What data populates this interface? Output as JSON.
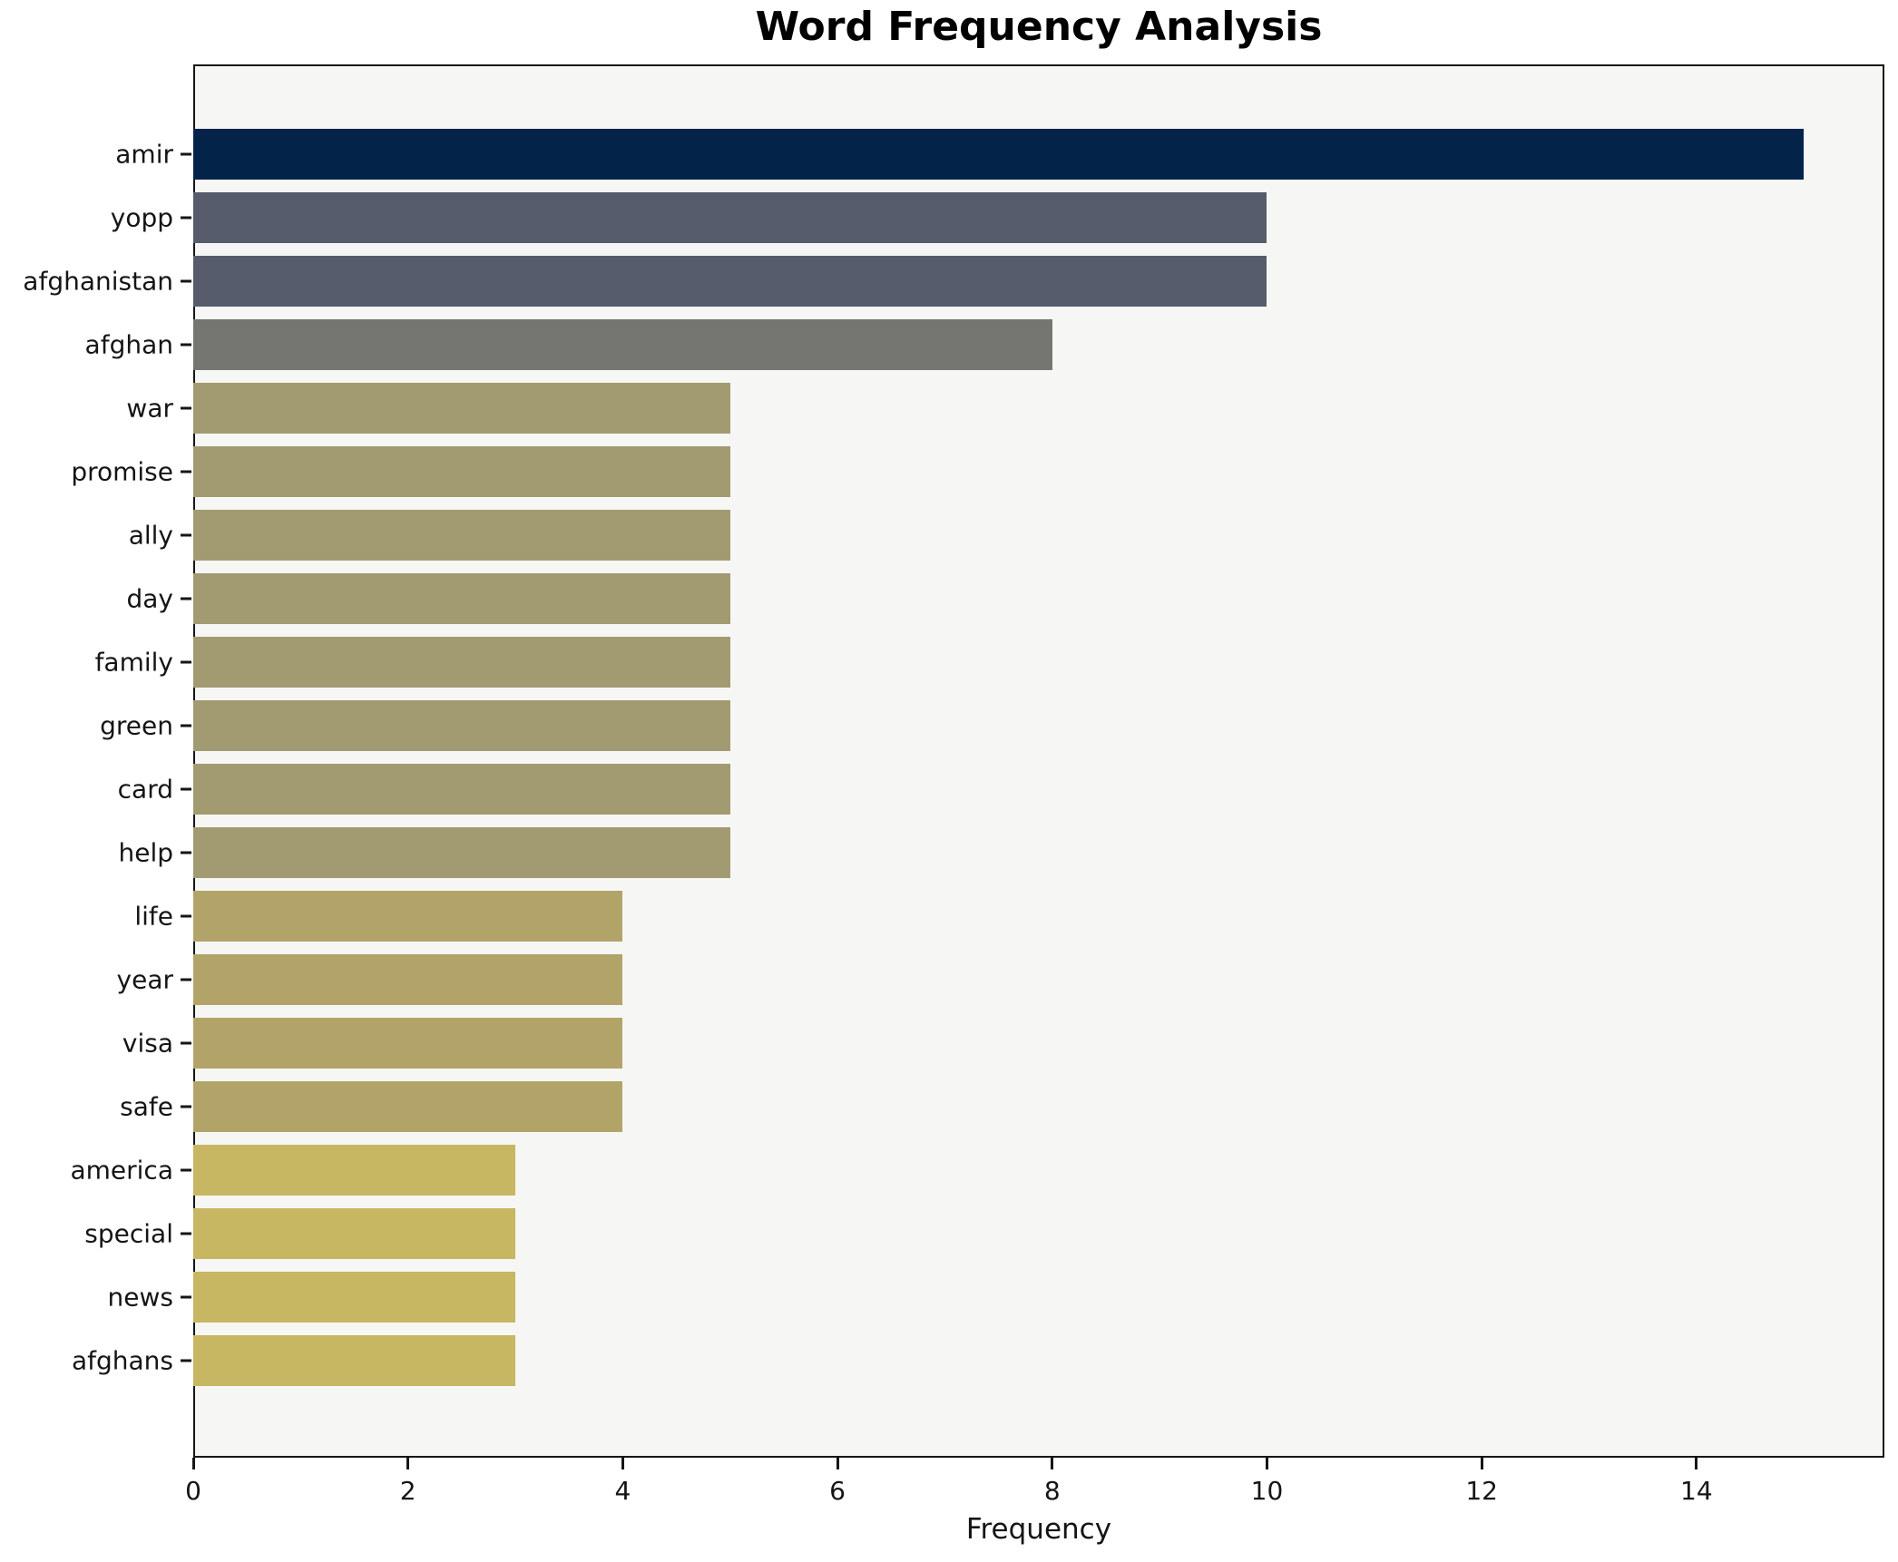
{
  "title": "Word Frequency Analysis",
  "chart_data": {
    "type": "bar",
    "orientation": "horizontal",
    "title": "Word Frequency Analysis",
    "xlabel": "Frequency",
    "ylabel": "",
    "categories": [
      "amir",
      "yopp",
      "afghanistan",
      "afghan",
      "war",
      "promise",
      "ally",
      "day",
      "family",
      "green",
      "card",
      "help",
      "life",
      "year",
      "visa",
      "safe",
      "america",
      "special",
      "news",
      "afghans"
    ],
    "values": [
      15,
      10,
      10,
      8,
      5,
      5,
      5,
      5,
      5,
      5,
      5,
      5,
      4,
      4,
      4,
      4,
      3,
      3,
      3,
      3
    ],
    "bar_colors": [
      "#042349",
      "#565c6b",
      "#565c6b",
      "#757571",
      "#a29a71",
      "#a29a71",
      "#a29a71",
      "#a29a71",
      "#a29a71",
      "#a29a71",
      "#a29a71",
      "#a29a71",
      "#b2a469",
      "#b2a469",
      "#b2a469",
      "#b2a469",
      "#c7b662",
      "#c7b662",
      "#c7b662",
      "#c7b662"
    ],
    "xlim": [
      0,
      15.75
    ],
    "xticks": [
      0,
      2,
      4,
      6,
      8,
      10,
      12,
      14
    ],
    "grid": false,
    "legend": null,
    "plot_background": "#f6f6f4",
    "figure_background": "#ffffff",
    "frame_color": "#161616"
  }
}
